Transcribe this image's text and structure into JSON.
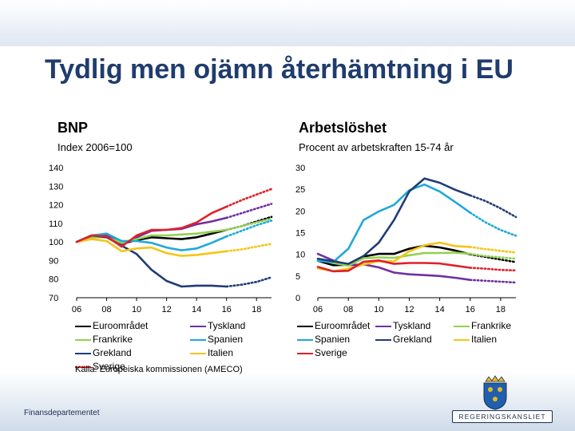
{
  "title": "Tydlig men ojämn återhämtning i EU",
  "source": "Källa: Europeiska kommissionen (AMECO)",
  "footer": {
    "organisation": "Finansdepartementet",
    "logo_text": "REGERINGSKANSLIET",
    "crest_icon": "crown-crest-icon"
  },
  "colors": {
    "Euroområdet": "#000000",
    "Tyskland": "#7030a0",
    "Frankrike": "#92d050",
    "Spanien": "#1fa8d8",
    "Grekland": "#1f3c77",
    "Italien": "#f5c518",
    "Sverige": "#e0202a"
  },
  "chart_data": [
    {
      "type": "line",
      "title": "BNP",
      "subtitle": "Index 2006=100",
      "x_tick_labels": [
        "06",
        "08",
        "10",
        "12",
        "14",
        "16",
        "18"
      ],
      "x_ticks": [
        2006,
        2008,
        2010,
        2012,
        2014,
        2016,
        2018
      ],
      "xlim": [
        2006,
        2019
      ],
      "ylim": [
        70,
        140
      ],
      "y_ticks": [
        70,
        80,
        90,
        100,
        110,
        120,
        130,
        140
      ],
      "dotted_after": 2016,
      "legend_columns": 2,
      "x": [
        2006,
        2007,
        2008,
        2009,
        2010,
        2011,
        2012,
        2013,
        2014,
        2015,
        2016,
        2017,
        2018,
        2019
      ],
      "series": [
        {
          "name": "Euroområdet",
          "values": [
            100,
            103,
            103.5,
            99,
            101,
            102.5,
            102,
            101.5,
            102.5,
            104.5,
            106.5,
            108.5,
            111,
            113.5
          ]
        },
        {
          "name": "Tyskland",
          "values": [
            100,
            103,
            104,
            98.5,
            102.5,
            106,
            106.5,
            107,
            109.5,
            111,
            113,
            115.5,
            118,
            120.5
          ]
        },
        {
          "name": "Frankrike",
          "values": [
            100,
            102.5,
            102.5,
            99.5,
            101.5,
            103.5,
            103.5,
            104,
            104.5,
            105.5,
            106.5,
            108.5,
            110.5,
            112.5
          ]
        },
        {
          "name": "Spanien",
          "values": [
            100,
            103.5,
            104.5,
            100.5,
            100.5,
            99.5,
            97,
            95.5,
            96.5,
            99.5,
            103,
            106,
            109,
            111.5
          ]
        },
        {
          "name": "Grekland",
          "values": [
            100,
            103.5,
            102.5,
            98,
            93.5,
            85,
            79,
            76,
            76.5,
            76.5,
            76,
            77,
            78.5,
            81
          ]
        },
        {
          "name": "Italien",
          "values": [
            100,
            101.5,
            100.5,
            95,
            96.5,
            97,
            94,
            92.5,
            93,
            94,
            95,
            96,
            97.5,
            99
          ]
        },
        {
          "name": "Sverige",
          "values": [
            100,
            103.5,
            103,
            97.5,
            103.5,
            106.5,
            106.5,
            107.5,
            110.5,
            115.5,
            119,
            122.5,
            125.5,
            128.5
          ]
        }
      ]
    },
    {
      "type": "line",
      "title": "Arbetslöshet",
      "subtitle": "Procent av arbetskraften 15-74 år",
      "x_tick_labels": [
        "06",
        "08",
        "10",
        "12",
        "14",
        "16",
        "18"
      ],
      "x_ticks": [
        2006,
        2008,
        2010,
        2012,
        2014,
        2016,
        2018
      ],
      "xlim": [
        2006,
        2019
      ],
      "ylim": [
        0,
        30
      ],
      "y_ticks": [
        0,
        5,
        10,
        15,
        20,
        25,
        30
      ],
      "dotted_after": 2016,
      "legend_columns": 3,
      "x": [
        2006,
        2007,
        2008,
        2009,
        2010,
        2011,
        2012,
        2013,
        2014,
        2015,
        2016,
        2017,
        2018,
        2019
      ],
      "series": [
        {
          "name": "Euroområdet",
          "values": [
            8.5,
            7.5,
            7.6,
            9.5,
            10.1,
            10.1,
            11.3,
            12,
            11.6,
            10.9,
            10,
            9.4,
            8.8,
            8.2
          ]
        },
        {
          "name": "Tyskland",
          "values": [
            10.1,
            8.6,
            7.5,
            7.7,
            7,
            5.8,
            5.4,
            5.2,
            5,
            4.6,
            4.1,
            3.9,
            3.7,
            3.5
          ]
        },
        {
          "name": "Frankrike",
          "values": [
            8.8,
            8,
            7.4,
            9.1,
            9.3,
            9.2,
            9.8,
            10.3,
            10.3,
            10.4,
            10.1,
            9.6,
            9.3,
            9.0
          ]
        },
        {
          "name": "Spanien",
          "values": [
            8.5,
            8.2,
            11.3,
            17.9,
            19.9,
            21.4,
            24.8,
            26.1,
            24.5,
            22.1,
            19.6,
            17.4,
            15.6,
            14.3
          ]
        },
        {
          "name": "Grekland",
          "values": [
            9,
            8.4,
            7.8,
            9.6,
            12.7,
            17.9,
            24.5,
            27.5,
            26.5,
            24.9,
            23.6,
            22.3,
            20.6,
            18.6
          ]
        },
        {
          "name": "Italien",
          "values": [
            6.8,
            6.1,
            6.7,
            7.7,
            8.4,
            8.4,
            10.7,
            12.1,
            12.7,
            11.9,
            11.7,
            11.2,
            10.8,
            10.4
          ]
        },
        {
          "name": "Sverige",
          "values": [
            7.1,
            6.1,
            6.2,
            8.3,
            8.6,
            7.8,
            8,
            8,
            7.9,
            7.4,
            6.9,
            6.7,
            6.4,
            6.3
          ]
        }
      ]
    }
  ]
}
